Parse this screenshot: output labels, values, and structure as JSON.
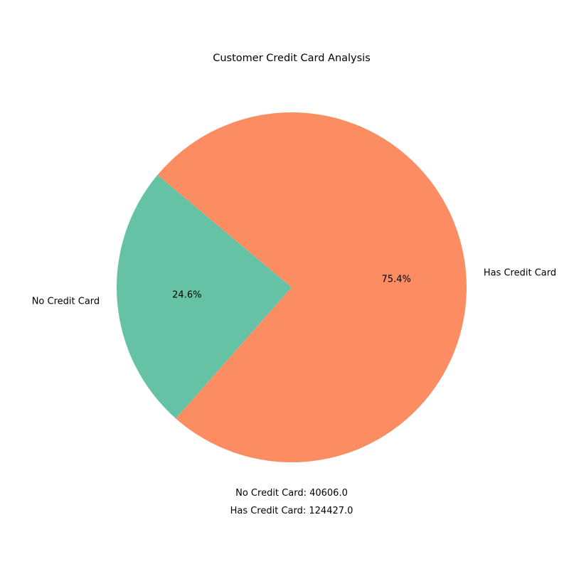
{
  "chart_data": {
    "type": "pie",
    "title": "Customer Credit Card Analysis",
    "categories": [
      "No Credit Card",
      "Has Credit Card"
    ],
    "values": [
      40606.0,
      124427.0
    ],
    "percent_labels": [
      "24.6%",
      "75.4%"
    ],
    "colors": [
      "#66c2a5",
      "#fc8d62"
    ],
    "start_angle_deg": 140,
    "direction": "counterclockwise",
    "annotations": [
      "No Credit Card: 40606.0",
      "Has Credit Card: 124427.0"
    ]
  }
}
